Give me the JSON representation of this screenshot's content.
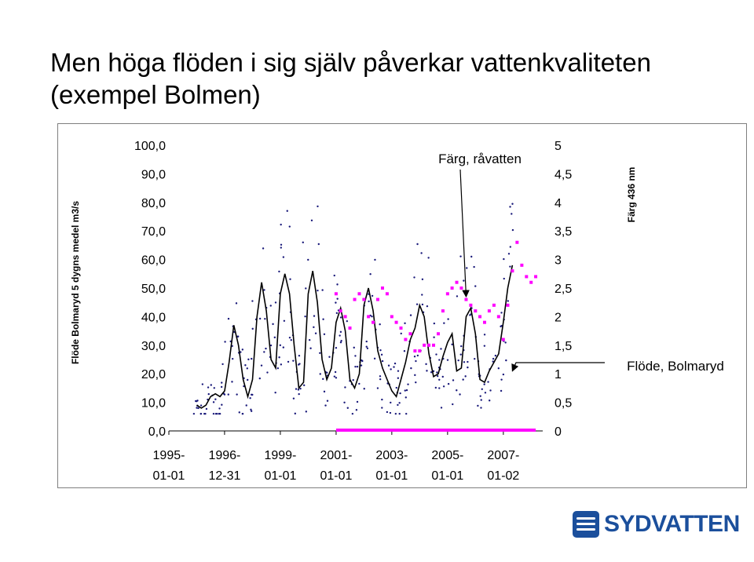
{
  "slide": {
    "title": "Men höga flöden i sig själv påverkar vattenkvaliteten (exempel Bolmen)",
    "logo_text": "SYDVATTEN"
  },
  "chart_data": {
    "type": "line",
    "ylabel": "Flöde Bolmaryd 5 dygns medel m3/s",
    "y2label": "Färg 436 nm",
    "ylim": [
      0,
      100
    ],
    "y2lim": [
      0,
      5
    ],
    "yticks": [
      "0,0",
      "10,0",
      "20,0",
      "30,0",
      "40,0",
      "50,0",
      "60,0",
      "70,0",
      "80,0",
      "90,0",
      "100,0"
    ],
    "y2ticks": [
      "0",
      "0,5",
      "1",
      "1,5",
      "2",
      "2,5",
      "3",
      "3,5",
      "4",
      "4,5",
      "5"
    ],
    "xticks": [
      "1995-01-01",
      "1996-12-31",
      "1999-01-01",
      "2001-01-01",
      "2003-01-01",
      "2005-01-01",
      "2007-01-02"
    ],
    "xlim": [
      "1995-01-01",
      "2008-06-01"
    ],
    "grid": false,
    "annotations": [
      {
        "text": "Färg, råvatten",
        "arrow_to": {
          "x": "2005-09-01",
          "y2": 2.35
        }
      },
      {
        "text": "Flöde, Bolmaryd",
        "arrow_to": {
          "x": "2007-05-01",
          "y": 21
        }
      }
    ],
    "series": [
      {
        "name": "Flöde, Bolmaryd",
        "style": "line",
        "color": "#000000",
        "axis": "left",
        "x": [
          "1996-01-01",
          "1996-03-01",
          "1996-05-01",
          "1996-07-01",
          "1996-09-01",
          "1996-11-01",
          "1997-01-01",
          "1997-03-01",
          "1997-05-01",
          "1997-07-01",
          "1997-09-01",
          "1997-11-01",
          "1998-01-01",
          "1998-03-01",
          "1998-05-01",
          "1998-07-01",
          "1998-09-01",
          "1998-11-01",
          "1999-01-01",
          "1999-03-01",
          "1999-05-01",
          "1999-07-01",
          "1999-09-01",
          "1999-11-01",
          "2000-01-01",
          "2000-03-01",
          "2000-05-01",
          "2000-07-01",
          "2000-09-01",
          "2000-11-01",
          "2001-01-01",
          "2001-03-01",
          "2001-05-01",
          "2001-07-01",
          "2001-09-01",
          "2001-11-01",
          "2002-01-01",
          "2002-03-01",
          "2002-05-01",
          "2002-07-01",
          "2002-09-01",
          "2002-11-01",
          "2003-01-01",
          "2003-03-01",
          "2003-05-01",
          "2003-07-01",
          "2003-09-01",
          "2003-11-01",
          "2004-01-01",
          "2004-03-01",
          "2004-05-01",
          "2004-07-01",
          "2004-09-01",
          "2004-11-01",
          "2005-01-01",
          "2005-03-01",
          "2005-05-01",
          "2005-07-01",
          "2005-09-01",
          "2005-11-01",
          "2006-01-01",
          "2006-03-01",
          "2006-05-01",
          "2006-07-01",
          "2006-09-01",
          "2006-11-01",
          "2007-01-01",
          "2007-03-01",
          "2007-05-01"
        ],
        "values": [
          9,
          8,
          9,
          12,
          13,
          12,
          14,
          24,
          37,
          30,
          18,
          12,
          18,
          40,
          52,
          42,
          25,
          22,
          48,
          55,
          48,
          30,
          15,
          17,
          48,
          56,
          45,
          25,
          18,
          22,
          38,
          43,
          35,
          18,
          15,
          20,
          44,
          50,
          42,
          28,
          22,
          18,
          14,
          12,
          18,
          24,
          32,
          36,
          44,
          40,
          27,
          19,
          20,
          26,
          31,
          34,
          21,
          22,
          40,
          43,
          34,
          18,
          17,
          21,
          24,
          27,
          38,
          50,
          58
        ]
      },
      {
        "name": "Färg, råvatten",
        "style": "markers",
        "color": "#ff00ff",
        "axis": "right",
        "x": [
          "2001-01-01",
          "2001-03-01",
          "2001-05-01",
          "2001-07-01",
          "2001-09-01",
          "2001-11-01",
          "2002-01-01",
          "2002-03-01",
          "2002-05-01",
          "2002-07-01",
          "2002-09-01",
          "2002-11-01",
          "2003-01-01",
          "2003-03-01",
          "2003-05-01",
          "2003-07-01",
          "2003-09-01",
          "2003-11-01",
          "2004-01-01",
          "2004-03-01",
          "2004-05-01",
          "2004-07-01",
          "2004-09-01",
          "2004-11-01",
          "2005-01-01",
          "2005-03-01",
          "2005-05-01",
          "2005-07-01",
          "2005-09-01",
          "2005-11-01",
          "2006-01-01",
          "2006-03-01",
          "2006-05-01",
          "2006-07-01",
          "2006-09-01",
          "2006-11-01",
          "2007-01-01",
          "2007-03-01",
          "2007-05-01",
          "2007-07-01",
          "2007-09-01",
          "2007-11-01",
          "2008-01-01",
          "2008-03-01"
        ],
        "values": [
          2.4,
          2.1,
          2.0,
          1.8,
          2.3,
          2.4,
          2.3,
          2.0,
          1.9,
          2.3,
          2.5,
          2.4,
          2.0,
          1.9,
          1.8,
          1.6,
          1.7,
          1.4,
          1.4,
          1.5,
          1.5,
          1.5,
          1.7,
          2.1,
          2.4,
          2.5,
          2.6,
          2.5,
          2.3,
          2.2,
          2.1,
          2.0,
          1.9,
          2.1,
          2.2,
          2.0,
          1.6,
          2.2,
          2.8,
          3.3,
          2.9,
          2.7,
          2.6,
          2.7
        ]
      }
    ]
  }
}
